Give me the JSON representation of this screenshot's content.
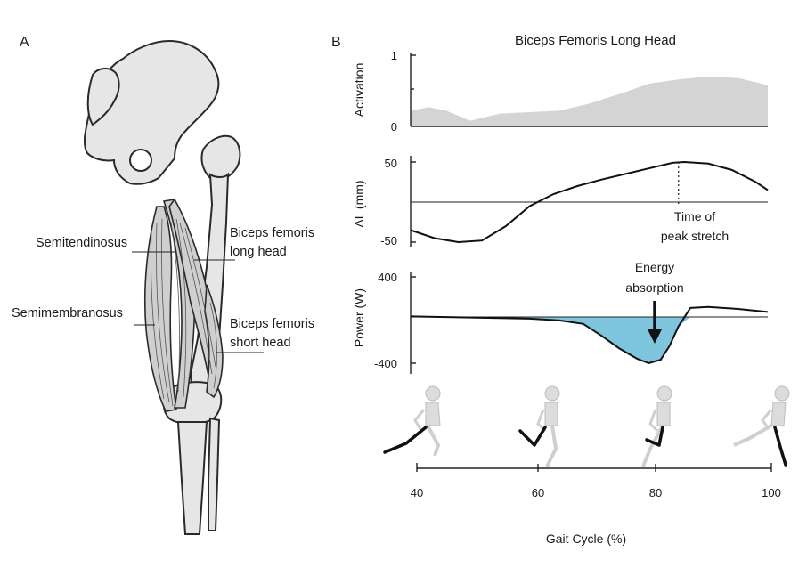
{
  "panel_a": {
    "letter": "A",
    "muscles": {
      "semitendinosus": "Semitendinosus",
      "semimembranosus": "Semimembranosus",
      "bf_long_line1": "Biceps femoris",
      "bf_long_line2": "long head",
      "bf_short_line1": "Biceps femoris",
      "bf_short_line2": "short head"
    }
  },
  "panel_b": {
    "letter": "B",
    "title": "Biceps Femoris Long Head",
    "activation": {
      "ylabel": "Activation",
      "ticks": [
        "1",
        "0"
      ],
      "fill_color": "#d4d4d4",
      "x": [
        40,
        43,
        46,
        50,
        55,
        60,
        65,
        70,
        73,
        76,
        80,
        85,
        90,
        95,
        100
      ],
      "y": [
        0.22,
        0.27,
        0.22,
        0.08,
        0.18,
        0.2,
        0.22,
        0.32,
        0.4,
        0.48,
        0.6,
        0.66,
        0.7,
        0.68,
        0.58
      ]
    },
    "length": {
      "ylabel": "ΔL (mm)",
      "ticks": [
        "50",
        "-50"
      ],
      "annotation_line1": "Time of",
      "annotation_line2": "peak stretch",
      "peak_x": 85,
      "x": [
        40,
        44,
        48,
        52,
        56,
        60,
        64,
        68,
        72,
        76,
        80,
        84,
        86,
        90,
        94,
        98,
        100
      ],
      "y": [
        -35,
        -45,
        -50,
        -48,
        -30,
        -5,
        10,
        20,
        28,
        35,
        42,
        49,
        50,
        48,
        40,
        25,
        15
      ]
    },
    "power": {
      "ylabel": "Power (W)",
      "ticks": [
        "400",
        "-400"
      ],
      "annotation_line1": "Energy",
      "annotation_line2": "absorption",
      "fill_color": "#7ec6dd",
      "x": [
        40,
        45,
        50,
        55,
        60,
        65,
        69,
        72,
        75,
        78,
        80,
        82,
        83.5,
        85,
        87,
        90,
        95,
        100
      ],
      "y": [
        5,
        0,
        -5,
        -10,
        -15,
        -30,
        -60,
        -160,
        -270,
        -360,
        -400,
        -370,
        -250,
        -80,
        90,
        100,
        80,
        50
      ]
    },
    "gait": {
      "xlabel": "Gait Cycle (%)",
      "ticks": [
        "40",
        "60",
        "80",
        "100"
      ]
    }
  }
}
